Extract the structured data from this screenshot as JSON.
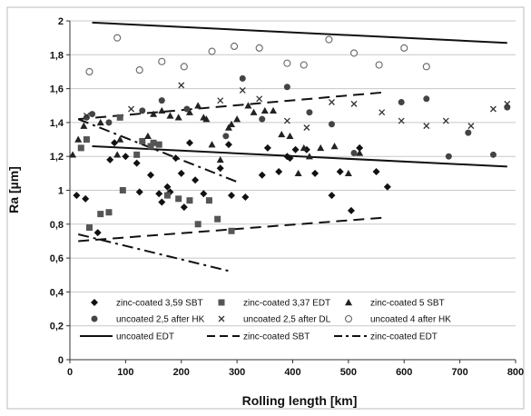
{
  "chart_data": {
    "type": "scatter",
    "xlabel": "Rolling length [km]",
    "ylabel": "Ra [µm]",
    "xlim": [
      0,
      800
    ],
    "ylim": [
      0,
      2
    ],
    "x_ticks": [
      "0",
      "100",
      "200",
      "300",
      "400",
      "500",
      "600",
      "700",
      "800"
    ],
    "y_ticks": [
      "0",
      "0,2",
      "0,4",
      "0,6",
      "0,8",
      "1",
      "1,2",
      "1,4",
      "1,6",
      "1,8",
      "2"
    ],
    "grid": "horizontal",
    "legend_position": "bottom-inside",
    "series": [
      {
        "name": "zinc-coated 3,59 SBT",
        "kind": "scatter",
        "marker": "diamond",
        "color": "#111111",
        "points": [
          [
            12,
            0.97
          ],
          [
            28,
            0.95
          ],
          [
            50,
            0.75
          ],
          [
            72,
            1.18
          ],
          [
            80,
            1.28
          ],
          [
            100,
            1.2
          ],
          [
            120,
            1.16
          ],
          [
            125,
            0.99
          ],
          [
            145,
            1.09
          ],
          [
            160,
            0.98
          ],
          [
            165,
            0.93
          ],
          [
            175,
            1.02
          ],
          [
            180,
            0.99
          ],
          [
            190,
            1.19
          ],
          [
            200,
            1.1
          ],
          [
            205,
            0.9
          ],
          [
            215,
            1.28
          ],
          [
            225,
            1.06
          ],
          [
            240,
            0.98
          ],
          [
            270,
            1.13
          ],
          [
            285,
            1.27
          ],
          [
            290,
            0.97
          ],
          [
            315,
            0.96
          ],
          [
            345,
            1.09
          ],
          [
            355,
            1.25
          ],
          [
            375,
            1.11
          ],
          [
            390,
            1.2
          ],
          [
            395,
            1.19
          ],
          [
            405,
            1.24
          ],
          [
            425,
            1.24
          ],
          [
            440,
            1.1
          ],
          [
            470,
            0.97
          ],
          [
            485,
            1.11
          ],
          [
            505,
            0.88
          ],
          [
            520,
            1.25
          ],
          [
            550,
            1.11
          ],
          [
            570,
            1.02
          ]
        ]
      },
      {
        "name": "zinc-coated 3,37 EDT",
        "kind": "scatter",
        "marker": "square",
        "color": "#555555",
        "points": [
          [
            20,
            1.25
          ],
          [
            30,
            1.3
          ],
          [
            35,
            0.78
          ],
          [
            55,
            0.86
          ],
          [
            70,
            0.87
          ],
          [
            90,
            1.43
          ],
          [
            95,
            1.0
          ],
          [
            120,
            1.21
          ],
          [
            130,
            1.29
          ],
          [
            145,
            1.26
          ],
          [
            150,
            1.28
          ],
          [
            160,
            1.27
          ],
          [
            175,
            0.97
          ],
          [
            195,
            0.95
          ],
          [
            215,
            0.94
          ],
          [
            230,
            0.8
          ],
          [
            250,
            0.94
          ],
          [
            265,
            0.83
          ],
          [
            290,
            0.76
          ]
        ]
      },
      {
        "name": "zinc-coated 5 SBT",
        "kind": "scatter",
        "marker": "triangle",
        "color": "#222222",
        "points": [
          [
            5,
            1.21
          ],
          [
            15,
            1.3
          ],
          [
            25,
            1.38
          ],
          [
            55,
            1.4
          ],
          [
            85,
            1.21
          ],
          [
            90,
            1.3
          ],
          [
            140,
            1.32
          ],
          [
            150,
            1.45
          ],
          [
            165,
            1.47
          ],
          [
            180,
            1.44
          ],
          [
            195,
            1.43
          ],
          [
            215,
            1.46
          ],
          [
            230,
            1.5
          ],
          [
            240,
            1.43
          ],
          [
            245,
            1.42
          ],
          [
            255,
            1.27
          ],
          [
            270,
            1.18
          ],
          [
            285,
            1.37
          ],
          [
            290,
            1.39
          ],
          [
            300,
            1.42
          ],
          [
            320,
            1.5
          ],
          [
            330,
            1.46
          ],
          [
            350,
            1.47
          ],
          [
            365,
            1.47
          ],
          [
            380,
            1.33
          ],
          [
            395,
            1.32
          ],
          [
            410,
            1.1
          ],
          [
            420,
            1.25
          ],
          [
            430,
            1.2
          ],
          [
            450,
            1.25
          ],
          [
            475,
            1.26
          ],
          [
            500,
            1.1
          ],
          [
            520,
            1.22
          ]
        ]
      },
      {
        "name": "uncoated 2,5 after HK",
        "kind": "scatter",
        "marker": "circle",
        "color": "#444444",
        "points": [
          [
            30,
            1.43
          ],
          [
            40,
            1.45
          ],
          [
            70,
            1.4
          ],
          [
            130,
            1.47
          ],
          [
            165,
            1.53
          ],
          [
            210,
            1.48
          ],
          [
            280,
            1.32
          ],
          [
            310,
            1.66
          ],
          [
            345,
            1.42
          ],
          [
            390,
            1.61
          ],
          [
            430,
            1.46
          ],
          [
            470,
            1.39
          ],
          [
            510,
            1.22
          ],
          [
            595,
            1.52
          ],
          [
            640,
            1.54
          ],
          [
            680,
            1.2
          ],
          [
            715,
            1.34
          ],
          [
            760,
            1.21
          ],
          [
            785,
            1.49
          ]
        ]
      },
      {
        "name": "uncoated 2,5 after DL",
        "kind": "scatter",
        "marker": "x",
        "color": "#333333",
        "points": [
          [
            30,
            1.44
          ],
          [
            110,
            1.48
          ],
          [
            200,
            1.62
          ],
          [
            270,
            1.53
          ],
          [
            310,
            1.59
          ],
          [
            340,
            1.54
          ],
          [
            390,
            1.41
          ],
          [
            425,
            1.37
          ],
          [
            470,
            1.52
          ],
          [
            510,
            1.51
          ],
          [
            560,
            1.46
          ],
          [
            595,
            1.41
          ],
          [
            640,
            1.38
          ],
          [
            675,
            1.41
          ],
          [
            720,
            1.38
          ],
          [
            760,
            1.48
          ],
          [
            785,
            1.51
          ]
        ]
      },
      {
        "name": "uncoated 4 after HK",
        "kind": "scatter",
        "marker": "open-circle",
        "color": "#666666",
        "points": [
          [
            35,
            1.7
          ],
          [
            85,
            1.9
          ],
          [
            125,
            1.71
          ],
          [
            165,
            1.76
          ],
          [
            205,
            1.73
          ],
          [
            255,
            1.82
          ],
          [
            295,
            1.85
          ],
          [
            340,
            1.84
          ],
          [
            390,
            1.75
          ],
          [
            420,
            1.74
          ],
          [
            465,
            1.89
          ],
          [
            510,
            1.81
          ],
          [
            555,
            1.74
          ],
          [
            600,
            1.84
          ],
          [
            640,
            1.73
          ]
        ]
      },
      {
        "name": "uncoated EDT",
        "kind": "line",
        "style": "solid",
        "color": "#111111",
        "points": [
          [
            40,
            1.99
          ],
          [
            785,
            1.87
          ]
        ]
      },
      {
        "name": "uncoated EDT",
        "kind": "line",
        "style": "solid",
        "color": "#111111",
        "points": [
          [
            40,
            1.26
          ],
          [
            785,
            1.14
          ]
        ]
      },
      {
        "name": "zinc-coated SBT",
        "kind": "line",
        "style": "dash",
        "color": "#111111",
        "points": [
          [
            15,
            1.42
          ],
          [
            570,
            1.58
          ]
        ]
      },
      {
        "name": "zinc-coated SBT",
        "kind": "line",
        "style": "dash",
        "color": "#111111",
        "points": [
          [
            15,
            0.7
          ],
          [
            570,
            0.84
          ]
        ]
      },
      {
        "name": "zinc-coated EDT",
        "kind": "line",
        "style": "dashdot",
        "color": "#111111",
        "points": [
          [
            15,
            1.42
          ],
          [
            300,
            1.05
          ]
        ]
      },
      {
        "name": "zinc-coated EDT",
        "kind": "line",
        "style": "dashdot",
        "color": "#111111",
        "points": [
          [
            15,
            0.74
          ],
          [
            290,
            0.52
          ]
        ]
      }
    ],
    "legend": [
      {
        "label": "zinc-coated 3,59 SBT",
        "symbol": "diamond"
      },
      {
        "label": "zinc-coated 3,37 EDT",
        "symbol": "square"
      },
      {
        "label": "zinc-coated 5 SBT",
        "symbol": "triangle"
      },
      {
        "label": "uncoated 2,5 after HK",
        "symbol": "circle"
      },
      {
        "label": "uncoated 2,5 after DL",
        "symbol": "x"
      },
      {
        "label": "uncoated 4 after HK",
        "symbol": "open-circle"
      },
      {
        "label": "uncoated EDT",
        "symbol": "solid"
      },
      {
        "label": "zinc-coated SBT",
        "symbol": "dash"
      },
      {
        "label": "zinc-coated EDT",
        "symbol": "dashdot"
      }
    ]
  }
}
